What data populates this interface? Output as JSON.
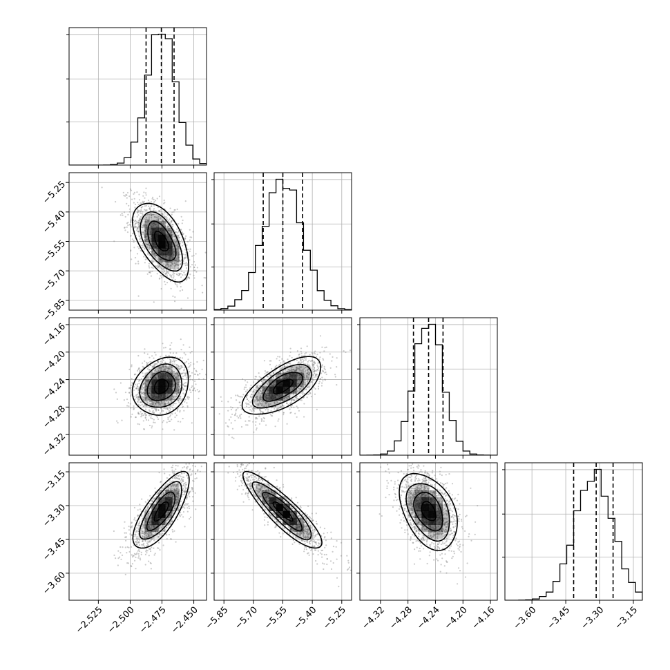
{
  "chart_data": {
    "type": "corner",
    "grid": true,
    "colors": {
      "hist": "#000000",
      "points": "#8a8a8a",
      "density": "#000000",
      "quantile": "#000000",
      "grid": "#b0b0b0"
    },
    "parameters": [
      {
        "index": 0,
        "range": [
          -2.548,
          -2.44
        ],
        "ticks": [
          -2.525,
          -2.5,
          -2.475,
          -2.45
        ],
        "tick_labels": [
          "−2.525",
          "−2.500",
          "−2.475",
          "−2.450"
        ],
        "quantiles": [
          -2.4875,
          -2.4755,
          -2.4655
        ],
        "mean": -2.4755,
        "sd": 0.011
      },
      {
        "index": 1,
        "range": [
          -5.9,
          -5.2
        ],
        "ticks": [
          -5.85,
          -5.7,
          -5.55,
          -5.4,
          -5.25
        ],
        "tick_labels": [
          "−5.85",
          "−5.70",
          "−5.55",
          "−5.40",
          "−5.25"
        ],
        "quantiles": [
          -5.65,
          -5.55,
          -5.45
        ],
        "mean": -5.55,
        "sd": 0.1
      },
      {
        "index": 2,
        "range": [
          -4.35,
          -4.15
        ],
        "ticks": [
          -4.32,
          -4.28,
          -4.24,
          -4.2,
          -4.16
        ],
        "tick_labels": [
          "−4.32",
          "−4.28",
          "−4.24",
          "−4.20",
          "−4.16"
        ],
        "quantiles": [
          -4.272,
          -4.25,
          -4.229
        ],
        "mean": -4.25,
        "sd": 0.021
      },
      {
        "index": 3,
        "range": [
          -3.72,
          -3.11
        ],
        "ticks": [
          -3.6,
          -3.45,
          -3.3,
          -3.15
        ],
        "tick_labels": [
          "−3.60",
          "−3.45",
          "−3.30",
          "−3.15"
        ],
        "quantiles": [
          -3.415,
          -3.315,
          -3.24
        ],
        "mean": -3.325,
        "sd": 0.085
      }
    ],
    "correlations": {
      "1-0": -0.55,
      "2-0": 0.2,
      "2-1": 0.65,
      "3-0": 0.75,
      "3-1": -0.88,
      "3-2": -0.4
    }
  }
}
